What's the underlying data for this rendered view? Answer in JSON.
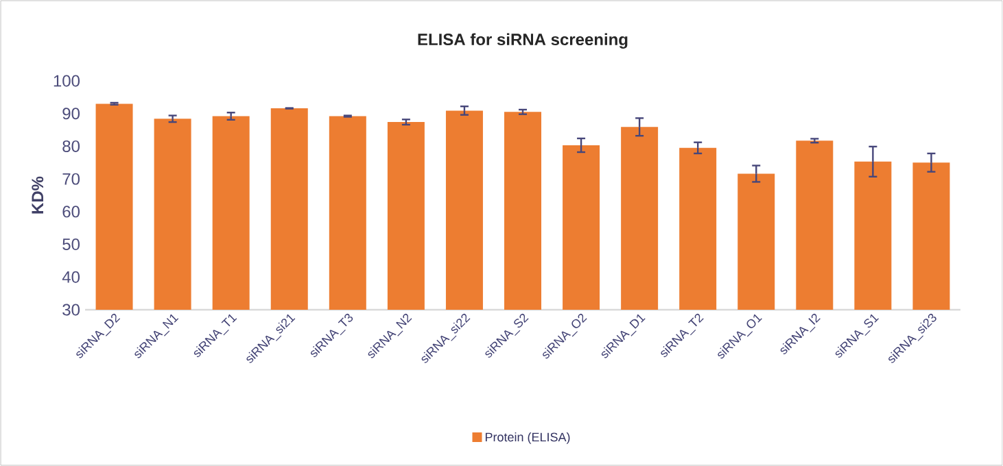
{
  "chart_data": {
    "type": "bar",
    "title": "ELISA for siRNA screening",
    "ylabel": "KD%",
    "categories": [
      "siRNA_D2",
      "siRNA_N1",
      "siRNA_T1",
      "siRNA_si21",
      "siRNA_T3",
      "siRNA_N2",
      "siRNA_si22",
      "siRNA_S2",
      "siRNA_O2",
      "siRNA_D1",
      "siRNA_T2",
      "siRNA_O1",
      "siRNA_I2",
      "siRNA_S1",
      "siRNA_si23"
    ],
    "series": [
      {
        "name": "Protein (ELISA)",
        "color": "#ed7d31",
        "values": [
          93.0,
          88.4,
          89.2,
          91.6,
          89.2,
          87.4,
          90.9,
          90.5,
          80.3,
          85.9,
          79.5,
          71.6,
          81.7,
          75.3,
          75.0
        ],
        "errors": [
          0.3,
          1.0,
          1.1,
          0.1,
          0.2,
          0.8,
          1.3,
          0.7,
          2.1,
          2.7,
          1.7,
          2.5,
          0.6,
          4.6,
          2.8
        ]
      }
    ],
    "ylim": [
      30,
      100
    ],
    "yticks": [
      30,
      40,
      50,
      60,
      70,
      80,
      90,
      100
    ],
    "legend": "bottom"
  }
}
